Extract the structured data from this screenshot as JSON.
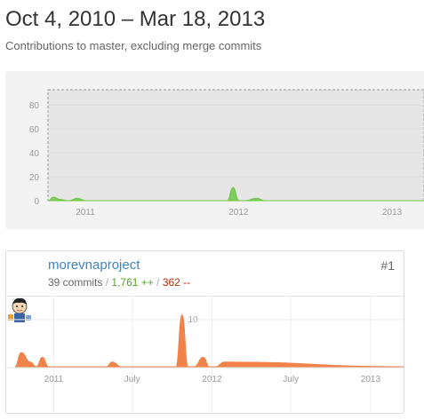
{
  "header": {
    "date_range": "Oct 4, 2010 – Mar 18, 2013",
    "subtitle": "Contributions to master, excluding merge commits"
  },
  "overview": {
    "y_ticks": [
      "0",
      "20",
      "40",
      "60",
      "80"
    ],
    "x_ticks": [
      "2011",
      "2012",
      "2013"
    ],
    "area_color": "#6cc644",
    "selection": "full range"
  },
  "contributor": {
    "name": "morevnaproject",
    "commits": "39 commits",
    "separator": "/",
    "additions": "1,761 ++",
    "deletions": "362 --",
    "rank": "#1",
    "area_color": "#f1834a",
    "x_ticks": [
      "2011",
      "July",
      "2012",
      "July",
      "2013"
    ],
    "y_tick": "10"
  },
  "chart_data": [
    {
      "type": "area",
      "title": "",
      "xlabel": "",
      "ylabel": "",
      "ylim": [
        0,
        95
      ],
      "x_tick_labels": [
        "2011",
        "2012",
        "2013"
      ],
      "series": [
        {
          "name": "",
          "color": "#6cc644",
          "x": [
            "2010-10-04",
            "2010-10-18",
            "2010-11-01",
            "2010-11-22",
            "2010-12-13",
            "2011-01-03",
            "2011-12-05",
            "2011-12-19",
            "2012-01-02",
            "2012-01-16",
            "2012-02-13",
            "2012-03-05",
            "2013-03-18"
          ],
          "y": [
            0,
            3,
            1,
            0,
            2,
            0,
            0,
            11,
            0,
            0,
            2,
            0,
            0
          ]
        }
      ]
    },
    {
      "type": "area",
      "title": "",
      "xlabel": "",
      "ylabel": "",
      "ylim": [
        0,
        13
      ],
      "x_tick_labels": [
        "2011",
        "July",
        "2012",
        "July",
        "2013"
      ],
      "series": [
        {
          "name": "morevnaproject",
          "color": "#f1834a",
          "x": [
            "2010-10-04",
            "2010-10-18",
            "2010-11-08",
            "2010-11-22",
            "2010-12-06",
            "2010-12-20",
            "2011-05-02",
            "2011-05-16",
            "2011-06-06",
            "2011-09-12",
            "2011-10-10",
            "2011-10-24",
            "2011-11-07",
            "2011-11-21",
            "2011-12-12",
            "2011-12-26",
            "2012-01-09",
            "2012-01-30",
            "2013-03-18"
          ],
          "y": [
            0,
            3,
            1,
            0,
            2,
            0,
            0,
            1,
            0,
            0,
            0,
            11,
            0,
            0,
            2,
            0,
            0,
            1,
            0
          ]
        }
      ]
    }
  ]
}
